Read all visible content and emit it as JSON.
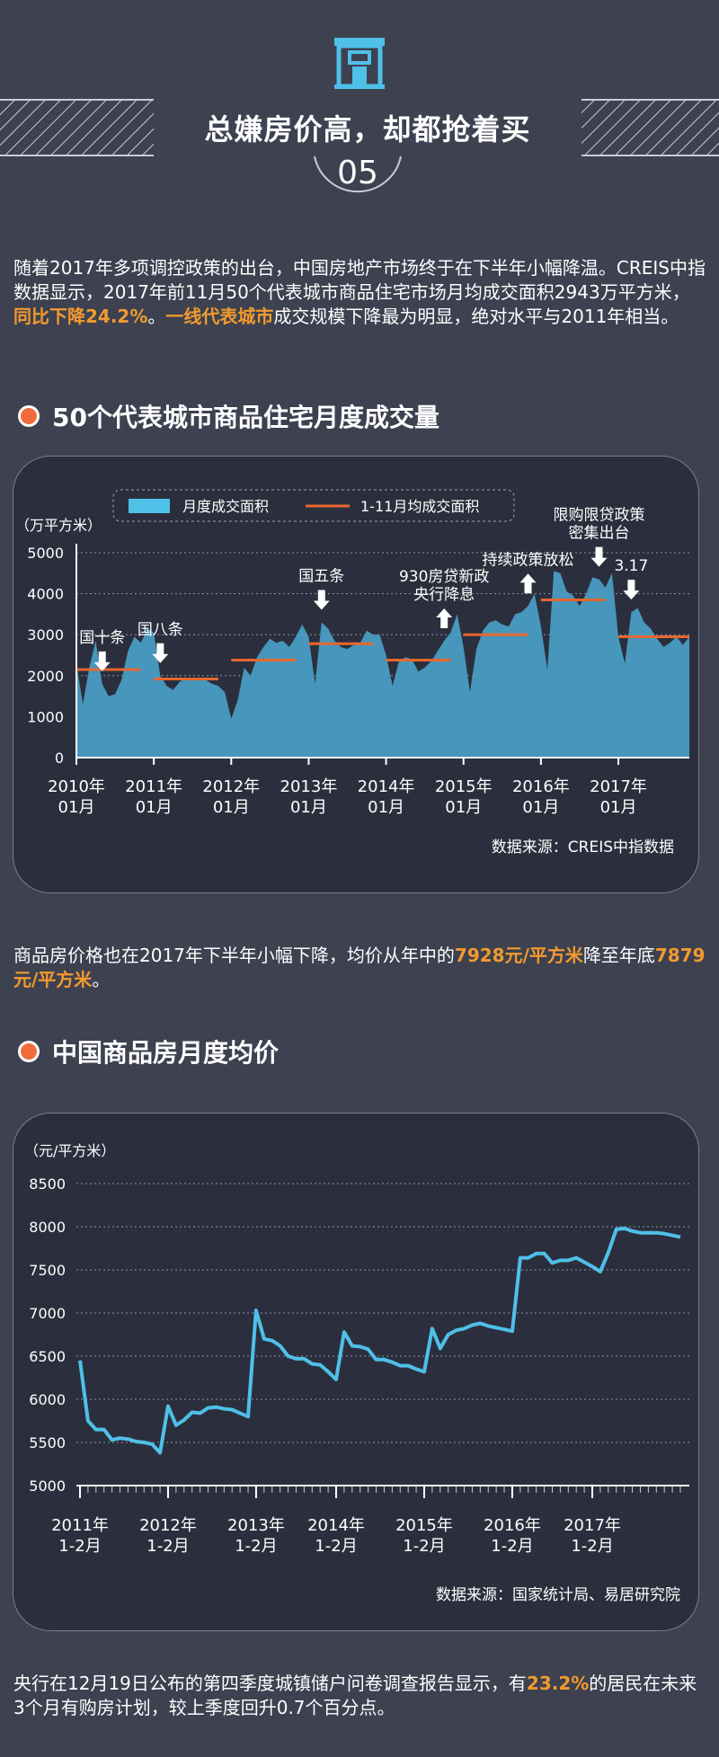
{
  "header": {
    "icon": "building-icon",
    "title": "总嫌房价高，却都抢着买",
    "number": "05"
  },
  "intro": {
    "part1": "随着2017年多项调控政策的出台，中国房地产市场终于在下半年小幅降温。CREIS中指数据显示，2017年前11月50个代表城市商品住宅市场月均成交面积2943万平方米，",
    "hl1": "同比下降24.2%",
    "part2": "。",
    "hl2": "一线代表城市",
    "part3": "成交规模下降最为明显，绝对水平与2011年相当。"
  },
  "section1": {
    "title": "50个代表城市商品住宅月度成交量"
  },
  "section2": {
    "title": "中国商品房月度均价"
  },
  "middle": {
    "part1": "商品房价格也在2017年下半年小幅下降，均价从年中的",
    "hl1": "7928元/平方米",
    "part2": "降至年底",
    "hl2": "7879元/平方米",
    "part3": "。"
  },
  "footer": {
    "part1": "央行在12月19日公布的第四季度城镇储户问卷调查报告显示，有",
    "hl1": "23.2%",
    "part2": "的居民在未来3个月有购房计划，较上季度回升0.7个百分点。"
  },
  "colors": {
    "area": "#4a9fc6",
    "avg_line": "#e8672f",
    "price_line": "#4fc0e8",
    "highlight": "#f29a2e",
    "background": "#3d4150",
    "panel": "#2b2f3d"
  },
  "chart_data": [
    {
      "type": "area",
      "ylabel": "（万平方米）",
      "ylim": [
        0,
        5000
      ],
      "yticks": [
        "0",
        "1000",
        "2000",
        "3000",
        "4000",
        "5000"
      ],
      "xticks": [
        {
          "index": 0,
          "label": [
            "2010年",
            "01月"
          ]
        },
        {
          "index": 12,
          "label": [
            "2011年",
            "01月"
          ]
        },
        {
          "index": 24,
          "label": [
            "2012年",
            "01月"
          ]
        },
        {
          "index": 36,
          "label": [
            "2013年",
            "01月"
          ]
        },
        {
          "index": 48,
          "label": [
            "2014年",
            "01月"
          ]
        },
        {
          "index": 60,
          "label": [
            "2015年",
            "01月"
          ]
        },
        {
          "index": 72,
          "label": [
            "2016年",
            "01月"
          ]
        },
        {
          "index": 84,
          "label": [
            "2017年",
            "01月"
          ]
        }
      ],
      "legend": [
        "月度成交面积",
        "1-11月均成交面积"
      ],
      "source": "数据来源：CREIS中指数据",
      "series": [
        {
          "name": "月度成交面积",
          "values": [
            2300,
            1300,
            2200,
            2850,
            1800,
            1500,
            1550,
            1900,
            2600,
            2950,
            2800,
            3150,
            3050,
            2000,
            1750,
            1650,
            1850,
            1950,
            1900,
            1950,
            1900,
            1800,
            1750,
            1600,
            950,
            1400,
            2200,
            2000,
            2450,
            2700,
            2900,
            2800,
            2850,
            2700,
            2950,
            3250,
            2950,
            1800,
            3300,
            3150,
            2850,
            2700,
            2650,
            2750,
            2800,
            3100,
            3000,
            3000,
            2500,
            1750,
            2350,
            2450,
            2400,
            2100,
            2200,
            2350,
            2600,
            2850,
            3050,
            3500,
            2700,
            1600,
            2650,
            3100,
            3300,
            3350,
            3250,
            3200,
            3500,
            3550,
            3700,
            4000,
            3200,
            2150,
            4550,
            4500,
            4050,
            3950,
            3700,
            4000,
            4400,
            4350,
            4150,
            4500,
            2950,
            2300,
            3550,
            3650,
            3300,
            3150,
            2900,
            2700,
            2800,
            2950,
            2750,
            2950
          ]
        },
        {
          "name": "1-11月均成交面积",
          "segments": [
            {
              "from": 0,
              "to": 10,
              "value": 2150
            },
            {
              "from": 12,
              "to": 22,
              "value": 1920
            },
            {
              "from": 24,
              "to": 34,
              "value": 2380
            },
            {
              "from": 36,
              "to": 46,
              "value": 2780
            },
            {
              "from": 48,
              "to": 58,
              "value": 2380
            },
            {
              "from": 60,
              "to": 70,
              "value": 3000
            },
            {
              "from": 72,
              "to": 82,
              "value": 3850
            },
            {
              "from": 84,
              "to": 95,
              "value": 2950
            }
          ]
        }
      ],
      "annotations": [
        {
          "label": "国十条",
          "index": 4,
          "direction": "down"
        },
        {
          "label": "国八条",
          "index": 13,
          "direction": "down"
        },
        {
          "label": "国五条",
          "index": 38,
          "direction": "down"
        },
        {
          "label": "930房贷新政央行降息",
          "lines": [
            "930房贷新政",
            "央行降息"
          ],
          "index": 57,
          "direction": "up"
        },
        {
          "label": "持续政策放松",
          "index": 70,
          "direction": "up"
        },
        {
          "label": "限购限贷政策密集出台",
          "lines": [
            "限购限贷政策",
            "密集出台"
          ],
          "index": 81,
          "direction": "down"
        },
        {
          "label": "3.17",
          "index": 86,
          "direction": "down"
        }
      ]
    },
    {
      "type": "line",
      "ylabel": "（元/平方米）",
      "ylim": [
        5000,
        8500
      ],
      "yticks": [
        "5000",
        "5500",
        "6000",
        "6500",
        "7000",
        "7500",
        "8000",
        "8500"
      ],
      "xticks": [
        {
          "index": 0,
          "label": [
            "2011年",
            "1-2月"
          ]
        },
        {
          "index": 11,
          "label": [
            "2012年",
            "1-2月"
          ]
        },
        {
          "index": 22,
          "label": [
            "2013年",
            "1-2月"
          ]
        },
        {
          "index": 32,
          "label": [
            "2014年",
            "1-2月"
          ]
        },
        {
          "index": 43,
          "label": [
            "2015年",
            "1-2月"
          ]
        },
        {
          "index": 54,
          "label": [
            "2016年",
            "1-2月"
          ]
        },
        {
          "index": 64,
          "label": [
            "2017年",
            "1-2月"
          ]
        }
      ],
      "source": "数据来源：国家统计局、易居研究院",
      "series": [
        {
          "name": "商品房月度均价",
          "values": [
            6450,
            5750,
            5650,
            5650,
            5530,
            5550,
            5540,
            5510,
            5500,
            5480,
            5380,
            5920,
            5700,
            5760,
            5850,
            5840,
            5900,
            5910,
            5890,
            5880,
            5840,
            5800,
            7030,
            6700,
            6680,
            6620,
            6500,
            6470,
            6470,
            6410,
            6400,
            6320,
            6230,
            6780,
            6620,
            6610,
            6580,
            6460,
            6460,
            6430,
            6390,
            6390,
            6350,
            6320,
            6820,
            6590,
            6750,
            6800,
            6820,
            6860,
            6880,
            6850,
            6830,
            6810,
            6790,
            7640,
            7640,
            7690,
            7690,
            7580,
            7610,
            7610,
            7640,
            7590,
            7540,
            7480,
            7700,
            7970,
            7980,
            7950,
            7930,
            7930,
            7930,
            7920,
            7900,
            7880
          ]
        }
      ]
    }
  ]
}
